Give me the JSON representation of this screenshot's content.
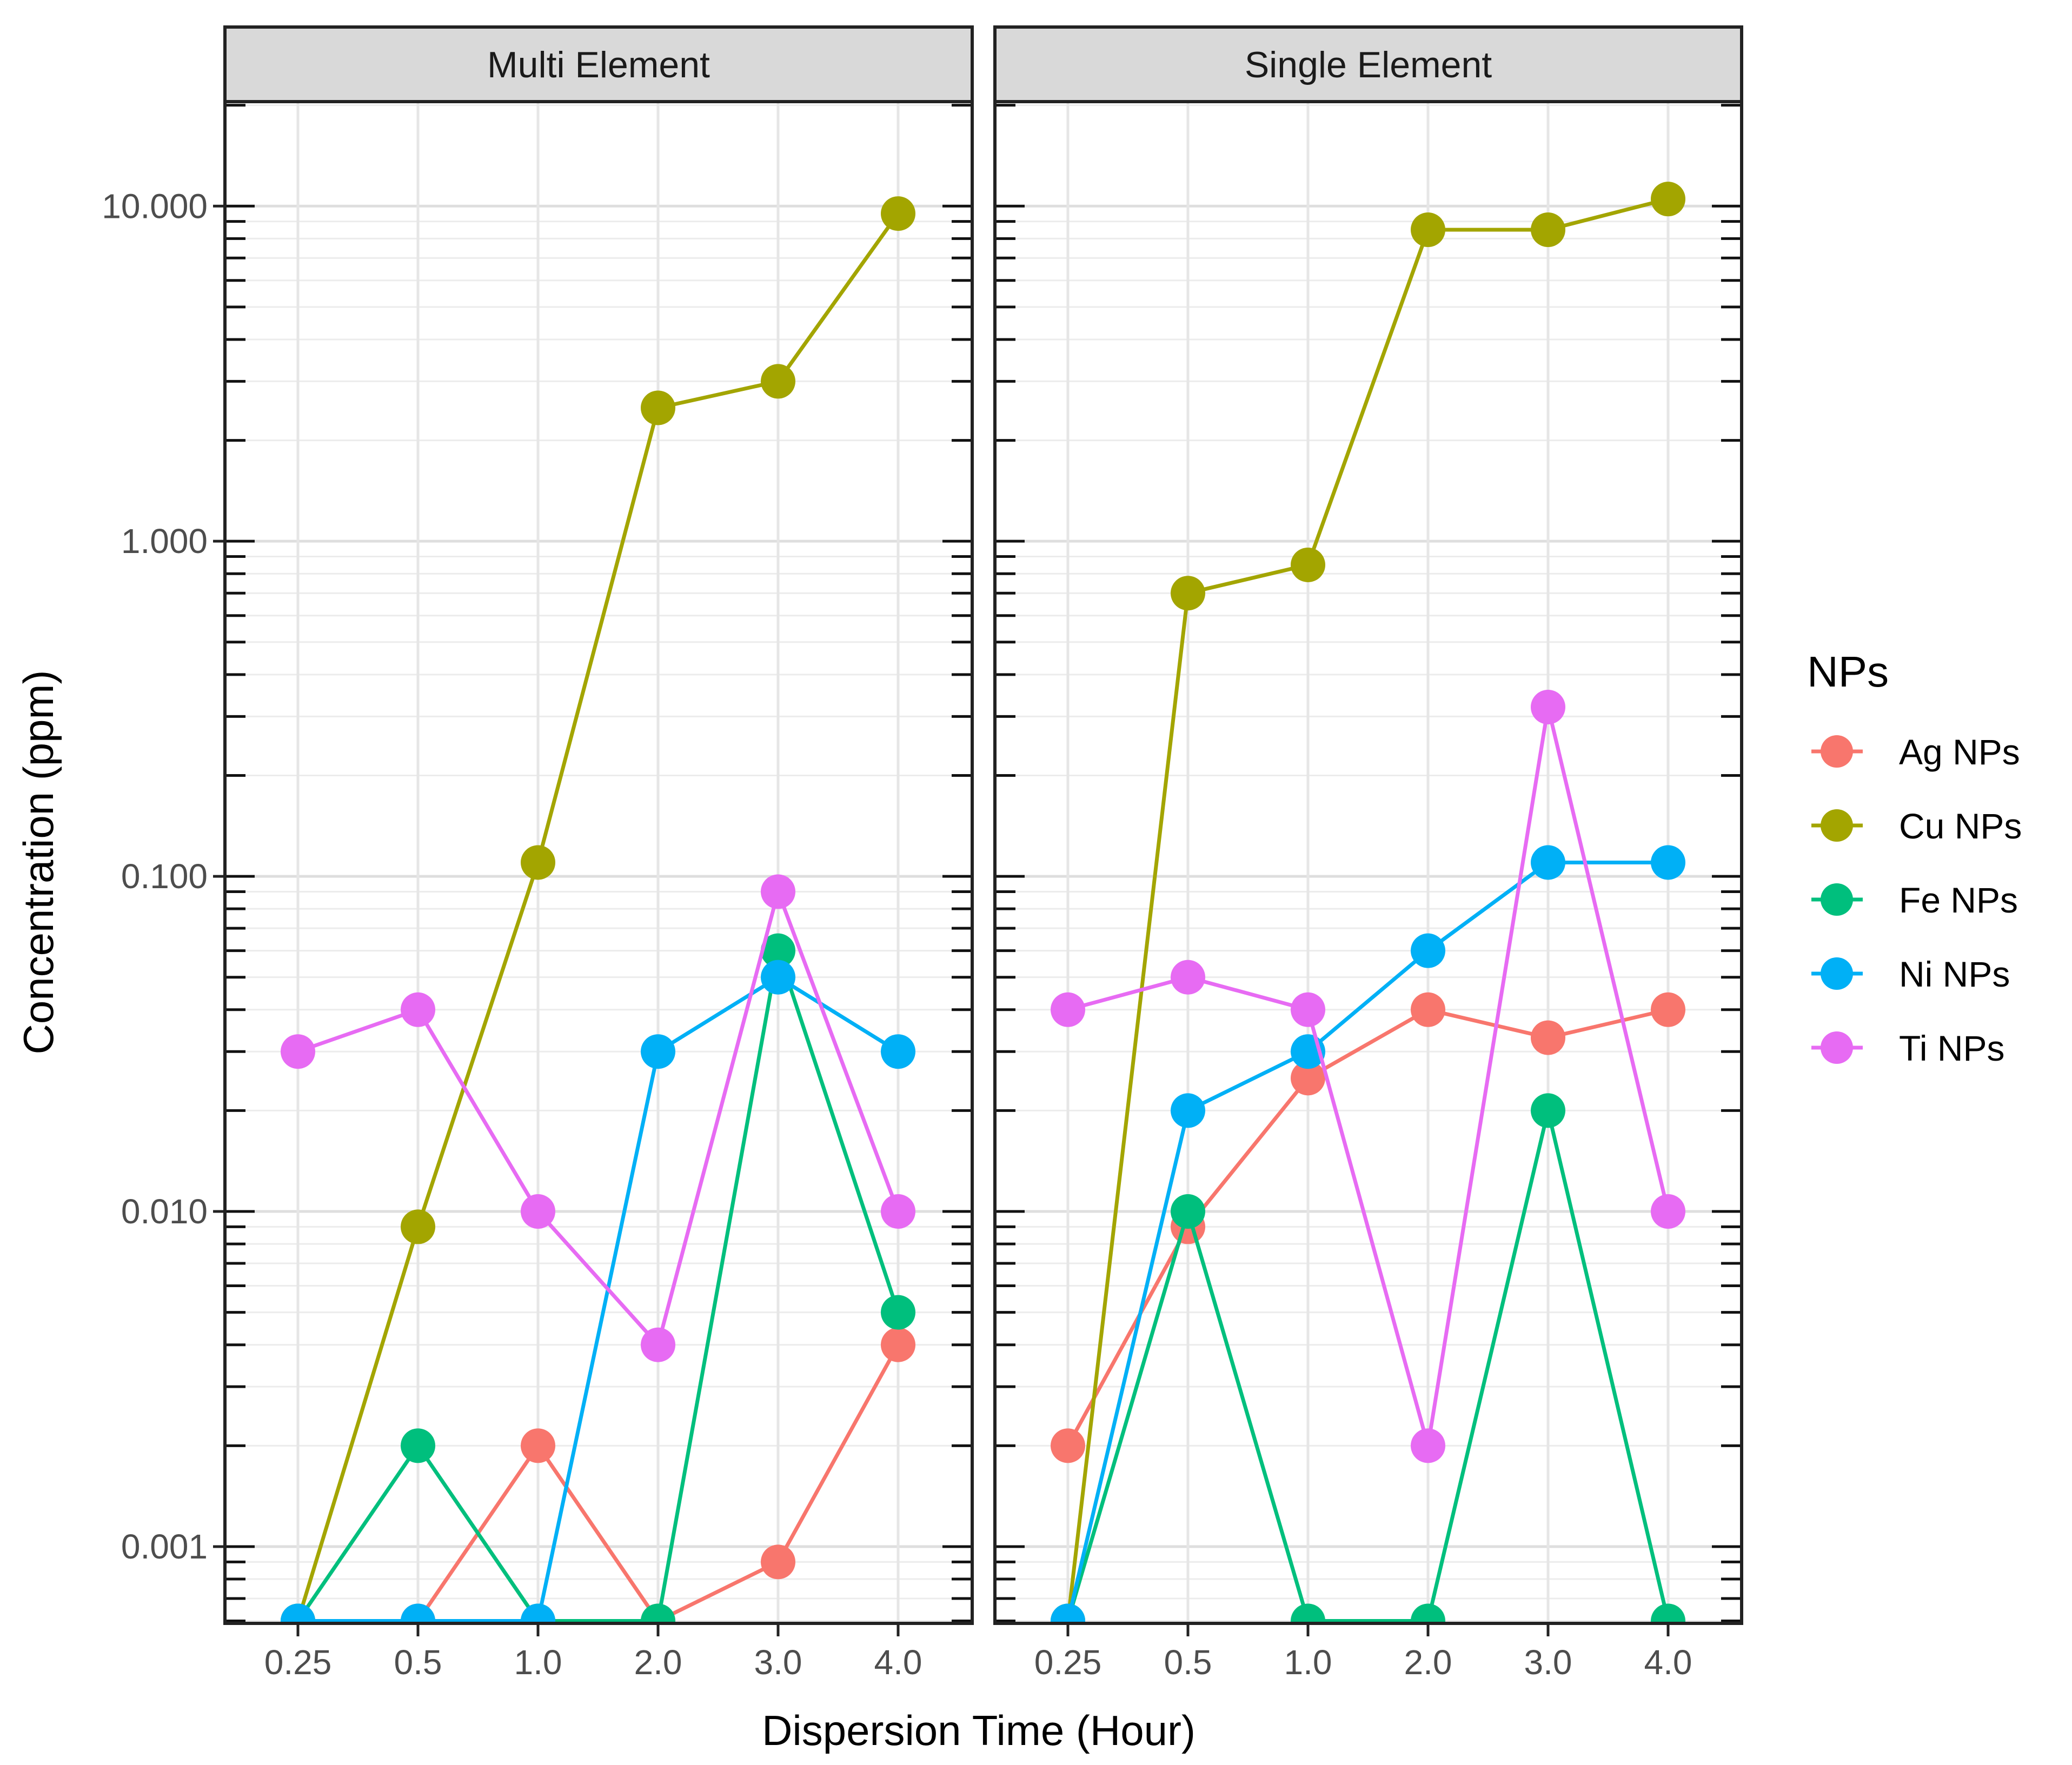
{
  "chart_data": {
    "type": "line",
    "x_scale": "categorical",
    "y_scale": "log10",
    "xlabel": "Dispersion Time (Hour)",
    "ylabel": "Concentration (ppm)",
    "categories": [
      "0.25",
      "0.5",
      "1.0",
      "2.0",
      "3.0",
      "4.0"
    ],
    "y_ticks": [
      {
        "value": 10,
        "label": "10.000"
      },
      {
        "value": 1,
        "label": "1.000"
      },
      {
        "value": 0.1,
        "label": "0.100"
      },
      {
        "value": 0.01,
        "label": "0.010"
      },
      {
        "value": 0.001,
        "label": "0.001"
      }
    ],
    "ylim": [
      0.00059,
      20.5
    ],
    "grid": true,
    "legend": {
      "title": "NPs",
      "position": "right"
    },
    "series_colors": {
      "Ag NPs": "#F8766D",
      "Cu NPs": "#A3A500",
      "Fe NPs": "#00BF7D",
      "Ni NPs": "#00B0F6",
      "Ti NPs": "#E76BF3"
    },
    "series_order": [
      "Ag NPs",
      "Cu NPs",
      "Fe NPs",
      "Ni NPs",
      "Ti NPs"
    ],
    "panels": [
      {
        "title": "Multi Element",
        "series": [
          {
            "name": "Ag NPs",
            "values": [
              0.0006,
              0.0006,
              0.002,
              0.0006,
              0.0009,
              0.004
            ]
          },
          {
            "name": "Cu NPs",
            "values": [
              0.0006,
              0.009,
              0.11,
              2.5,
              3.0,
              9.5
            ]
          },
          {
            "name": "Fe NPs",
            "values": [
              0.0006,
              0.002,
              0.0006,
              0.0006,
              0.06,
              0.005
            ]
          },
          {
            "name": "Ni NPs",
            "values": [
              0.0006,
              0.0006,
              0.0006,
              0.03,
              0.05,
              0.03
            ]
          },
          {
            "name": "Ti NPs",
            "values": [
              0.03,
              0.04,
              0.01,
              0.004,
              0.09,
              0.01
            ]
          }
        ]
      },
      {
        "title": "Single Element",
        "series": [
          {
            "name": "Ag NPs",
            "values": [
              0.002,
              0.009,
              0.025,
              0.04,
              0.033,
              0.04
            ]
          },
          {
            "name": "Cu NPs",
            "values": [
              0.0006,
              0.7,
              0.85,
              8.5,
              8.5,
              10.5
            ]
          },
          {
            "name": "Fe NPs",
            "values": [
              0.0006,
              0.01,
              0.0006,
              0.0006,
              0.02,
              0.0006
            ]
          },
          {
            "name": "Ni NPs",
            "values": [
              0.0006,
              0.02,
              0.03,
              0.06,
              0.11,
              0.11
            ]
          },
          {
            "name": "Ti NPs",
            "values": [
              0.04,
              0.05,
              0.04,
              0.002,
              0.32,
              0.01
            ]
          }
        ]
      }
    ]
  }
}
